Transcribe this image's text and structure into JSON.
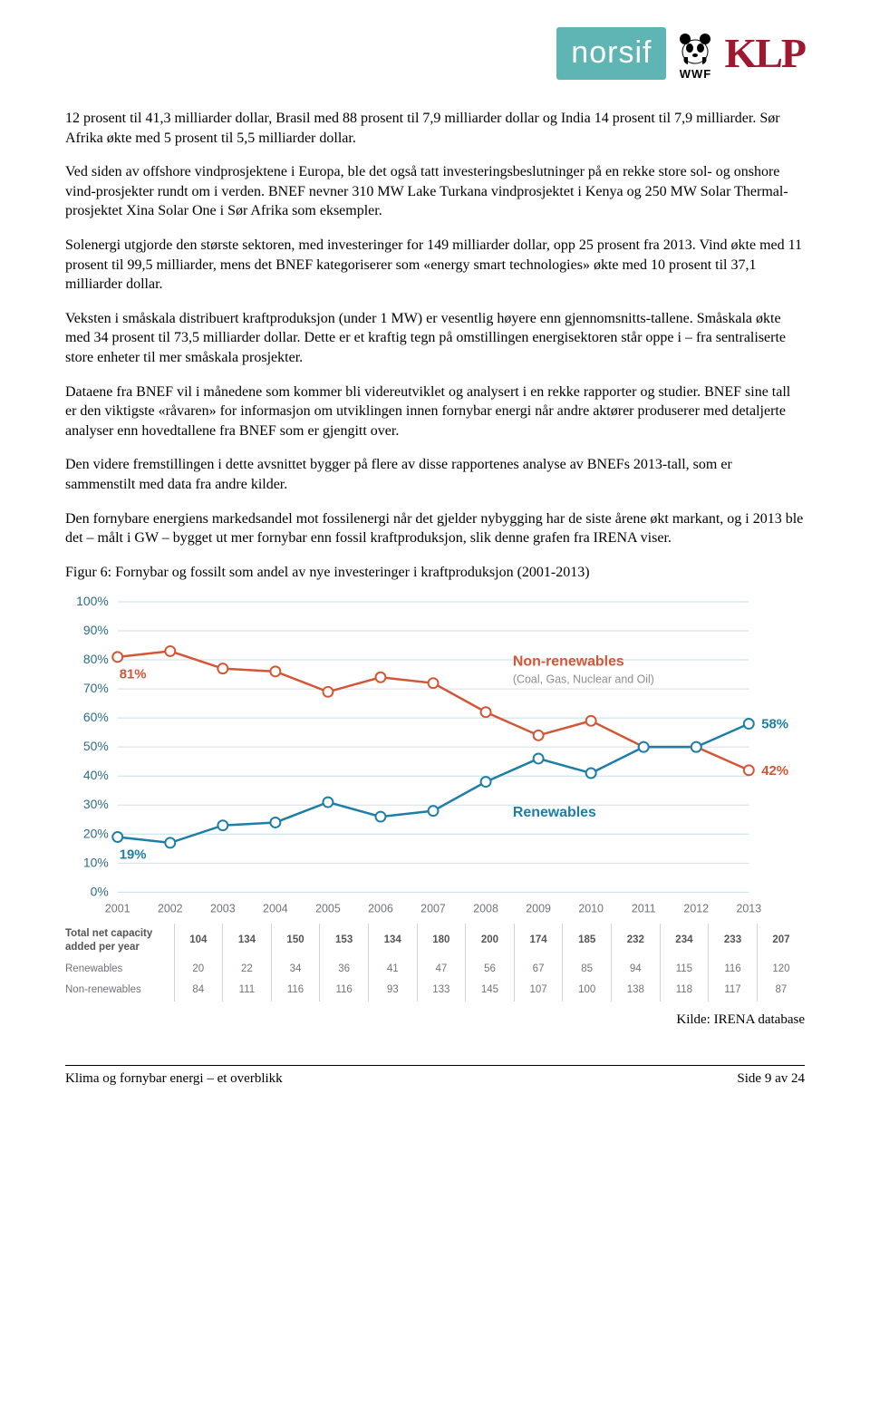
{
  "header": {
    "norsif": "norsif",
    "wwf": "WWF",
    "klp": "KLP"
  },
  "paragraphs": {
    "p1": "12 prosent til 41,3 milliarder dollar, Brasil med 88 prosent til 7,9 milliarder dollar og India 14 prosent til 7,9 milliarder. Sør Afrika økte med 5 prosent til 5,5 milliarder dollar.",
    "p2": "Ved siden av offshore vindprosjektene i Europa, ble det også tatt investeringsbeslutninger på en rekke store sol- og onshore vind-prosjekter rundt om i verden. BNEF nevner 310 MW Lake Turkana vindprosjektet i Kenya og 250 MW Solar Thermal-prosjektet Xina Solar One i Sør Afrika som eksempler.",
    "p3": "Solenergi utgjorde den største sektoren, med investeringer for 149 milliarder dollar, opp 25 prosent fra 2013. Vind økte med 11 prosent til 99,5 milliarder, mens det BNEF kategoriserer som «energy smart technologies» økte med 10 prosent til 37,1 milliarder dollar.",
    "p4": "Veksten i småskala distribuert kraftproduksjon (under 1 MW) er vesentlig høyere enn gjennomsnitts-tallene. Småskala økte med 34 prosent til 73,5 milliarder dollar. Dette er et kraftig tegn på omstillingen energisektoren står oppe i – fra sentraliserte store enheter til mer småskala prosjekter.",
    "p5": "Dataene fra BNEF vil i månedene som kommer bli videreutviklet og analysert i en rekke rapporter og studier. BNEF sine tall er den viktigste «råvaren» for informasjon om utviklingen innen fornybar energi når andre aktører produserer med detaljerte analyser enn hovedtallene fra BNEF som er gjengitt over.",
    "p6": "Den videre fremstillingen i dette avsnittet bygger på flere av disse rapportenes analyse av BNEFs 2013-tall, som er sammenstilt med data fra andre kilder.",
    "p7": "Den fornybare energiens markedsandel mot fossilenergi når det gjelder nybygging har de siste årene økt markant, og i 2013 ble det – målt i GW – bygget ut mer fornybar enn fossil kraftproduksjon, slik denne grafen fra IRENA viser.",
    "figcap": "Figur 6: Fornybar og fossilt som andel av nye investeringer i kraftproduksjon (2001-2013)"
  },
  "chart": {
    "type": "line",
    "ylim": [
      0,
      100
    ],
    "ytick_step": 10,
    "years": [
      "2001",
      "2002",
      "2003",
      "2004",
      "2005",
      "2006",
      "2007",
      "2008",
      "2009",
      "2010",
      "2011",
      "2012",
      "2013"
    ],
    "series": {
      "nonrenew": {
        "label": "Non-renewables",
        "sublabel": "(Coal, Gas, Nuclear and Oil)",
        "color": "#d35635",
        "values": [
          81,
          83,
          77,
          76,
          69,
          74,
          72,
          62,
          54,
          59,
          50,
          50,
          42
        ],
        "callout_start": "81%",
        "callout_end": "42%"
      },
      "renew": {
        "label": "Renewables",
        "color": "#1d7ea8",
        "values": [
          19,
          17,
          23,
          24,
          31,
          26,
          28,
          38,
          46,
          41,
          50,
          50,
          58
        ],
        "callout_start": "19%",
        "callout_end": "58%"
      }
    },
    "gridline_color": "#d6dde3",
    "gridline_alt_color": "#c4e0e8",
    "axis_label_color": "#2b6d8a",
    "marker_fill": "#ffffff",
    "marker_radius": 5.5,
    "line_width": 2.5,
    "label_fontsize": 14,
    "title_fontsize": 16
  },
  "table": {
    "rows": [
      {
        "label": "Total net capacity added per year",
        "cells": [
          "104",
          "134",
          "150",
          "153",
          "134",
          "180",
          "200",
          "174",
          "185",
          "232",
          "234",
          "233",
          "207"
        ],
        "bold": true
      },
      {
        "label": "Renewables",
        "cells": [
          "20",
          "22",
          "34",
          "36",
          "41",
          "47",
          "56",
          "67",
          "85",
          "94",
          "115",
          "116",
          "120"
        ],
        "bold": false
      },
      {
        "label": "Non-renewables",
        "cells": [
          "84",
          "111",
          "116",
          "116",
          "93",
          "133",
          "145",
          "107",
          "100",
          "138",
          "118",
          "117",
          "87"
        ],
        "bold": false
      }
    ]
  },
  "source": "Kilde: IRENA database",
  "footer": {
    "left": "Klima og fornybar energi – et overblikk",
    "right": "Side 9 av 24"
  }
}
